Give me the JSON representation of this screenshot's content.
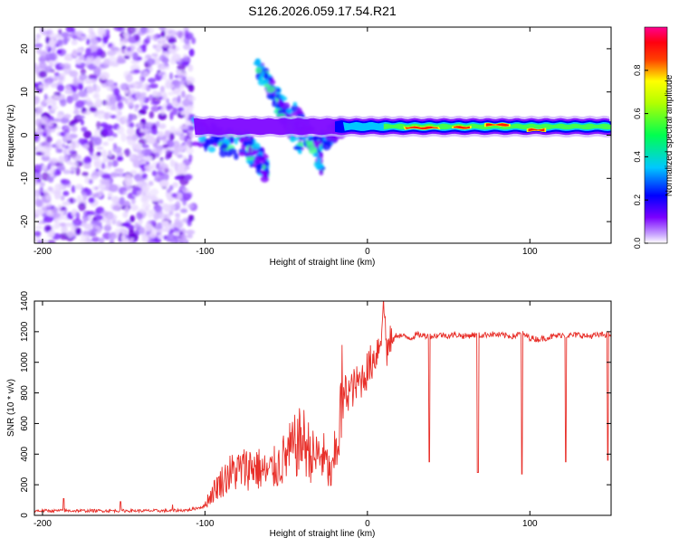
{
  "title": "S126.2026.059.17.54.R21",
  "chart_data": [
    {
      "type": "heatmap",
      "title": "S126.2026.059.17.54.R21",
      "xlabel": "Height of straight line (km)",
      "ylabel": "Frequency (Hz)",
      "xlim": [
        -205,
        150
      ],
      "ylim": [
        -25,
        25
      ],
      "xticks": [
        -200,
        -100,
        0,
        100
      ],
      "yticks": [
        -20,
        -10,
        0,
        10,
        20
      ],
      "colorbar": {
        "label": "Normalized spectral amplitude",
        "range": [
          0.0,
          1.0
        ],
        "ticks": [
          0.0,
          0.2,
          0.4,
          0.6,
          0.8
        ],
        "tick_labels": [
          "0.0",
          "0.2",
          "0.4",
          "0.6",
          "0.8"
        ],
        "colormap": "hsv-rainbow (white-violet-blue-cyan-green-yellow-red-magenta)"
      },
      "regions": [
        {
          "name": "scattered noise",
          "x": [
            -205,
            -107
          ],
          "freq": [
            -25,
            25
          ],
          "amplitude": 0.1
        },
        {
          "name": "fragmented band",
          "x": [
            -107,
            -15
          ],
          "freq": [
            -12,
            17
          ],
          "amplitude": 0.25
        },
        {
          "name": "steady tone",
          "x": [
            -15,
            150
          ],
          "freq": [
            1,
            3
          ],
          "amplitude": 0.6
        }
      ]
    },
    {
      "type": "line",
      "xlabel": "Height of straight line (km)",
      "ylabel": "SNR (10 * v/v)",
      "xlim": [
        -205,
        150
      ],
      "ylim": [
        0,
        1400
      ],
      "xticks": [
        -200,
        -100,
        0,
        100
      ],
      "yticks": [
        0,
        200,
        400,
        600,
        800,
        1000,
        1200,
        1400
      ],
      "color": "#e8302a",
      "series": [
        {
          "name": "SNR",
          "x": [
            -205,
            -190,
            -175,
            -160,
            -145,
            -130,
            -120,
            -110,
            -100,
            -92,
            -85,
            -78,
            -70,
            -62,
            -55,
            -48,
            -40,
            -33,
            -28,
            -22,
            -17,
            -14,
            -10,
            -5,
            0,
            5,
            8,
            10,
            12,
            15,
            18,
            22,
            27,
            30,
            35,
            40,
            45,
            50,
            55,
            60,
            65,
            70,
            75,
            80,
            85,
            90,
            95,
            100,
            105,
            110,
            115,
            120,
            125,
            130,
            135,
            140,
            145,
            150
          ],
          "y": [
            30,
            30,
            30,
            30,
            30,
            30,
            30,
            35,
            60,
            160,
            220,
            240,
            260,
            220,
            260,
            330,
            400,
            300,
            320,
            200,
            480,
            800,
            820,
            870,
            950,
            1050,
            1150,
            1400,
            1080,
            1130,
            1180,
            1170,
            1160,
            1180,
            1175,
            1170,
            1180,
            1175,
            1180,
            1170,
            1180,
            1175,
            1185,
            1180,
            1175,
            1170,
            1190,
            1160,
            1150,
            1160,
            1170,
            1180,
            1175,
            1180,
            1170,
            1175,
            1180,
            1185
          ]
        }
      ],
      "dips": [
        {
          "x": 38,
          "y": 350
        },
        {
          "x": 68,
          "y": 280
        },
        {
          "x": 95,
          "y": 270
        },
        {
          "x": 122,
          "y": 350
        },
        {
          "x": 148,
          "y": 360
        }
      ],
      "spikes": [
        {
          "x": -187,
          "y": 110
        },
        {
          "x": -152,
          "y": 90
        },
        {
          "x": -120,
          "y": 70
        }
      ]
    }
  ]
}
